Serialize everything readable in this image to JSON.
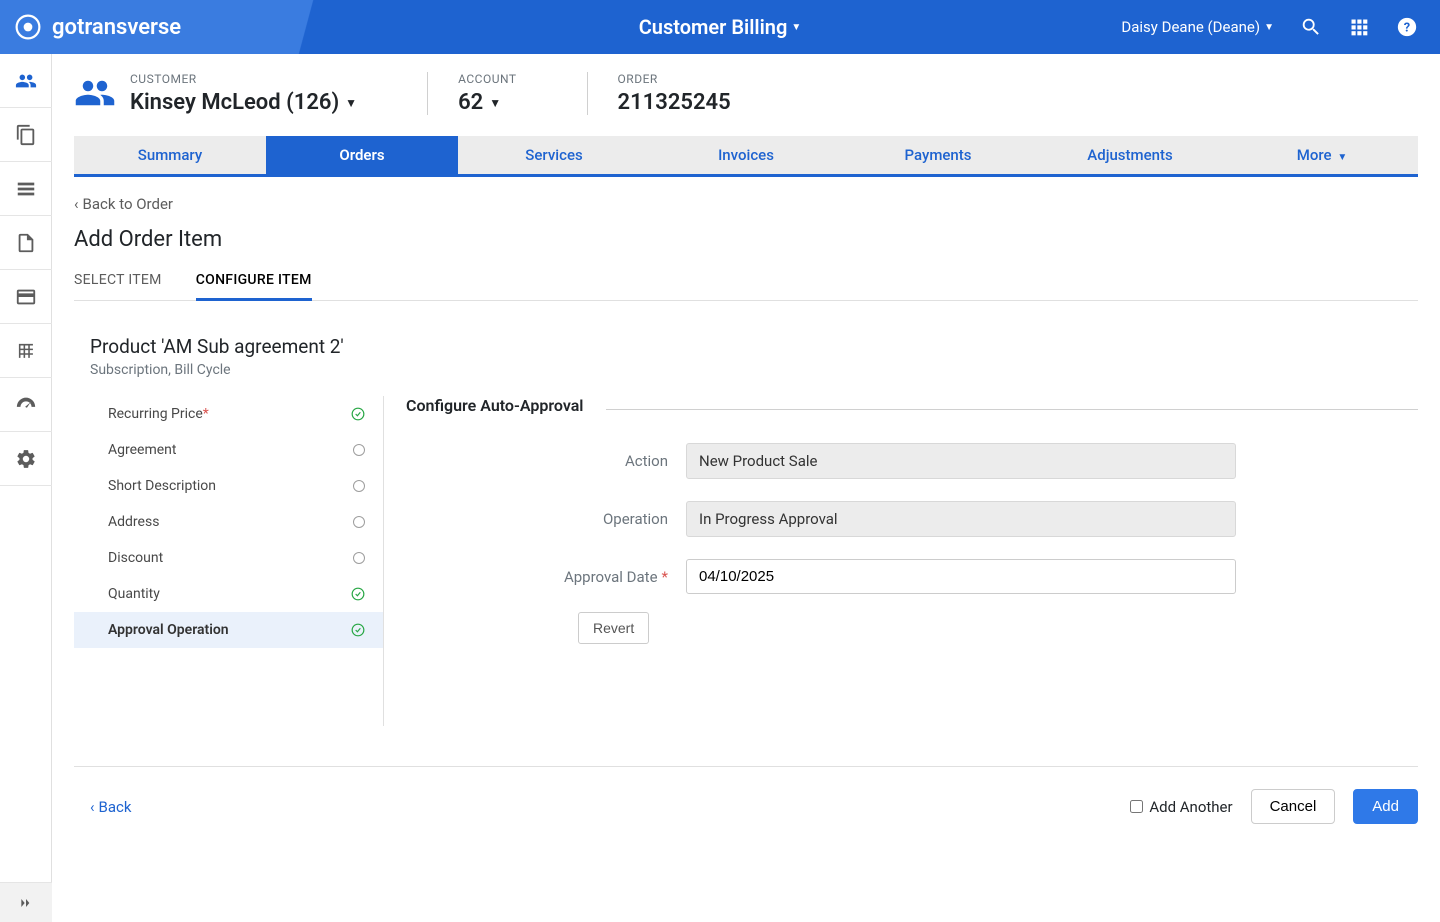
{
  "brand": "gotransverse",
  "topbar": {
    "title": "Customer Billing",
    "user": "Daisy Deane (Deane)"
  },
  "breadcrumb": {
    "customer_label": "CUSTOMER",
    "customer_value": "Kinsey McLeod (126)",
    "account_label": "ACCOUNT",
    "account_value": "62",
    "order_label": "ORDER",
    "order_value": "211325245"
  },
  "tabs": [
    "Summary",
    "Orders",
    "Services",
    "Invoices",
    "Payments",
    "Adjustments"
  ],
  "tabs_more": "More",
  "active_tab": "Orders",
  "back_to_order": "Back to Order",
  "page_title": "Add Order Item",
  "subtabs": {
    "select": "SELECT ITEM",
    "configure": "CONFIGURE ITEM"
  },
  "product": {
    "title": "Product 'AM Sub agreement 2'",
    "subtitle": "Subscription, Bill Cycle"
  },
  "steps": [
    {
      "label": "Recurring Price",
      "required": true,
      "status": "check"
    },
    {
      "label": "Agreement",
      "required": false,
      "status": "circle"
    },
    {
      "label": "Short Description",
      "required": false,
      "status": "circle"
    },
    {
      "label": "Address",
      "required": false,
      "status": "circle"
    },
    {
      "label": "Discount",
      "required": false,
      "status": "circle"
    },
    {
      "label": "Quantity",
      "required": false,
      "status": "check"
    },
    {
      "label": "Approval Operation",
      "required": false,
      "status": "check",
      "active": true
    }
  ],
  "form": {
    "section": "Configure Auto-Approval",
    "action_label": "Action",
    "action_value": "New Product Sale",
    "operation_label": "Operation",
    "operation_value": "In Progress Approval",
    "date_label": "Approval Date",
    "date_value": "04/10/2025",
    "revert": "Revert"
  },
  "footer": {
    "back": "Back",
    "add_another": "Add Another",
    "cancel": "Cancel",
    "add": "Add"
  }
}
